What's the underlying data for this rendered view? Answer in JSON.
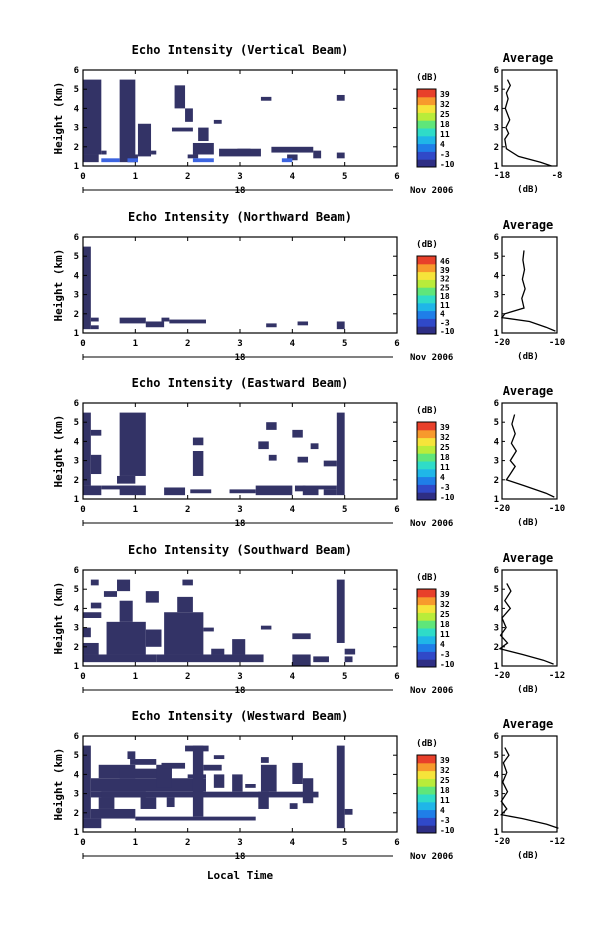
{
  "figure": {
    "x_axis_label": "Local Time",
    "date_label": "Nov 2006",
    "day_label": "18",
    "y_label": "Height (km)",
    "avg_title": "Average",
    "db_unit": "(dB)",
    "x_ticks": [
      "0",
      "1",
      "2",
      "3",
      "4",
      "5",
      "6"
    ],
    "y_ticks": [
      "1",
      "2",
      "3",
      "4",
      "5",
      "6"
    ],
    "fill_color": "#333366",
    "colormap": [
      "#2e2e84",
      "#3049c8",
      "#1f7ee8",
      "#1fb6e8",
      "#2fdcc8",
      "#5fe67a",
      "#b9ec3a",
      "#f6e43a",
      "#f79a2c",
      "#e8402a"
    ]
  },
  "chart_data": [
    {
      "type": "heatmap",
      "title": "Echo Intensity (Vertical Beam)",
      "ylabel": "Height (km)",
      "xlim": [
        0,
        6
      ],
      "ylim": [
        1,
        6
      ],
      "colorbar": {
        "unit": "(dB)",
        "ticks": [
          "39",
          "32",
          "25",
          "18",
          "11",
          "4",
          "-3",
          "-10"
        ]
      },
      "cells": [
        [
          0.0,
          0.35,
          1.6,
          5.5
        ],
        [
          0.0,
          0.3,
          1.2,
          1.6
        ],
        [
          0.35,
          0.45,
          1.6,
          1.8
        ],
        [
          0.7,
          1.0,
          1.2,
          5.5
        ],
        [
          0.85,
          1.05,
          1.2,
          1.6
        ],
        [
          1.05,
          1.3,
          1.5,
          3.2
        ],
        [
          1.3,
          1.4,
          1.6,
          1.8
        ],
        [
          1.7,
          2.1,
          2.8,
          3.0
        ],
        [
          1.75,
          1.95,
          4.0,
          5.2
        ],
        [
          1.95,
          2.1,
          3.3,
          4.0
        ],
        [
          2.1,
          2.5,
          1.6,
          2.2
        ],
        [
          2.2,
          2.4,
          2.3,
          3.0
        ],
        [
          2.0,
          2.2,
          1.4,
          1.6
        ],
        [
          2.5,
          2.65,
          3.2,
          3.4
        ],
        [
          2.6,
          3.4,
          1.5,
          1.9
        ],
        [
          2.95,
          3.2,
          1.6,
          1.9
        ],
        [
          3.4,
          3.6,
          4.4,
          4.6
        ],
        [
          3.6,
          4.4,
          1.7,
          2.0
        ],
        [
          3.9,
          4.1,
          1.3,
          1.6
        ],
        [
          4.4,
          4.55,
          1.4,
          1.8
        ],
        [
          4.85,
          5.0,
          4.4,
          4.7
        ],
        [
          4.85,
          5.0,
          1.4,
          1.7
        ]
      ],
      "average": {
        "xlim": [
          -18,
          -8
        ],
        "xticks": [
          "-18",
          "-8"
        ],
        "profile": [
          [
            -9,
            1.0
          ],
          [
            -11,
            1.2
          ],
          [
            -15,
            1.5
          ],
          [
            -17.2,
            1.9
          ],
          [
            -17.5,
            2.4
          ],
          [
            -16.8,
            2.7
          ],
          [
            -17.3,
            3.0
          ],
          [
            -16.6,
            3.4
          ],
          [
            -17.4,
            4.0
          ],
          [
            -16.9,
            4.5
          ],
          [
            -17.2,
            4.8
          ],
          [
            -16.5,
            5.2
          ],
          [
            -17.0,
            5.5
          ]
        ]
      }
    },
    {
      "type": "heatmap",
      "title": "Echo Intensity (Northward Beam)",
      "ylabel": "Height (km)",
      "xlim": [
        0,
        6
      ],
      "ylim": [
        1,
        6
      ],
      "colorbar": {
        "unit": "(dB)",
        "ticks": [
          "46",
          "39",
          "32",
          "25",
          "18",
          "11",
          "4",
          "-3",
          "-10"
        ]
      },
      "cells": [
        [
          0.0,
          0.15,
          1.2,
          5.5
        ],
        [
          0.15,
          0.3,
          1.2,
          1.4
        ],
        [
          0.15,
          0.3,
          1.6,
          1.8
        ],
        [
          0.7,
          1.2,
          1.5,
          1.8
        ],
        [
          1.2,
          1.55,
          1.3,
          1.6
        ],
        [
          1.5,
          1.65,
          1.6,
          1.8
        ],
        [
          1.65,
          2.35,
          1.5,
          1.7
        ],
        [
          3.5,
          3.7,
          1.3,
          1.5
        ],
        [
          4.1,
          4.3,
          1.4,
          1.6
        ],
        [
          4.85,
          5.0,
          1.2,
          1.6
        ]
      ],
      "average": {
        "xlim": [
          -20,
          -10
        ],
        "xticks": [
          "-20",
          "-10"
        ],
        "profile": [
          [
            -10.3,
            1.1
          ],
          [
            -12,
            1.3
          ],
          [
            -15,
            1.6
          ],
          [
            -20,
            1.8
          ],
          [
            -19.5,
            2.0
          ],
          [
            -16,
            2.3
          ],
          [
            -16.4,
            2.8
          ],
          [
            -15.8,
            3.3
          ],
          [
            -16.3,
            3.8
          ],
          [
            -15.9,
            4.3
          ],
          [
            -16.2,
            4.8
          ],
          [
            -16.0,
            5.3
          ]
        ]
      }
    },
    {
      "type": "heatmap",
      "title": "Echo Intensity (Eastward Beam)",
      "ylabel": "Height (km)",
      "xlim": [
        0,
        6
      ],
      "ylim": [
        1,
        6
      ],
      "colorbar": {
        "unit": "(dB)",
        "ticks": [
          "39",
          "32",
          "25",
          "18",
          "11",
          "4",
          "-3",
          "-10"
        ]
      },
      "cells": [
        [
          0.0,
          0.35,
          1.2,
          1.7
        ],
        [
          0.0,
          0.15,
          1.7,
          5.5
        ],
        [
          0.15,
          0.35,
          2.3,
          3.3
        ],
        [
          0.15,
          0.35,
          4.3,
          4.6
        ],
        [
          0.35,
          1.0,
          1.5,
          1.7
        ],
        [
          0.7,
          1.2,
          1.2,
          1.7
        ],
        [
          0.7,
          1.2,
          2.2,
          5.5
        ],
        [
          0.65,
          1.0,
          1.8,
          2.2
        ],
        [
          1.55,
          1.95,
          1.2,
          1.6
        ],
        [
          2.05,
          2.45,
          1.3,
          1.5
        ],
        [
          2.1,
          2.3,
          2.2,
          3.5
        ],
        [
          2.1,
          2.3,
          3.8,
          4.2
        ],
        [
          2.8,
          3.0,
          1.3,
          1.5
        ],
        [
          3.0,
          3.3,
          1.3,
          1.5
        ],
        [
          3.3,
          4.0,
          1.2,
          1.7
        ],
        [
          3.35,
          3.55,
          3.6,
          4.0
        ],
        [
          3.55,
          3.7,
          3.0,
          3.3
        ],
        [
          3.5,
          3.7,
          4.6,
          5.0
        ],
        [
          4.0,
          4.2,
          4.2,
          4.6
        ],
        [
          4.05,
          4.25,
          1.4,
          1.7
        ],
        [
          4.1,
          4.3,
          2.9,
          3.2
        ],
        [
          4.2,
          4.5,
          1.2,
          1.7
        ],
        [
          4.35,
          4.5,
          3.6,
          3.9
        ],
        [
          4.5,
          4.85,
          1.5,
          1.7
        ],
        [
          4.6,
          4.85,
          2.7,
          3.0
        ],
        [
          4.85,
          5.0,
          1.2,
          5.5
        ],
        [
          4.6,
          4.85,
          1.2,
          1.5
        ]
      ],
      "average": {
        "xlim": [
          -20,
          -10
        ],
        "xticks": [
          "-20",
          "-10"
        ],
        "profile": [
          [
            -10.5,
            1.1
          ],
          [
            -12,
            1.3
          ],
          [
            -16,
            1.7
          ],
          [
            -19.2,
            2.0
          ],
          [
            -18.5,
            2.3
          ],
          [
            -17.6,
            2.7
          ],
          [
            -18.5,
            3.0
          ],
          [
            -17.4,
            3.5
          ],
          [
            -18.3,
            3.9
          ],
          [
            -17.6,
            4.4
          ],
          [
            -18.2,
            4.9
          ],
          [
            -17.7,
            5.4
          ]
        ]
      }
    },
    {
      "type": "heatmap",
      "title": "Echo Intensity (Southward Beam)",
      "ylabel": "Height (km)",
      "xlim": [
        0,
        6
      ],
      "ylim": [
        1,
        6
      ],
      "colorbar": {
        "unit": "(dB)",
        "ticks": [
          "39",
          "32",
          "25",
          "18",
          "11",
          "4",
          "-3",
          "-10"
        ]
      },
      "cells": [
        [
          0.0,
          1.4,
          1.2,
          1.6
        ],
        [
          1.4,
          3.45,
          1.2,
          1.6
        ],
        [
          0.0,
          0.3,
          1.6,
          2.2
        ],
        [
          0.0,
          0.15,
          2.5,
          3.0
        ],
        [
          0.0,
          0.35,
          3.5,
          3.8
        ],
        [
          0.15,
          0.35,
          4.0,
          4.3
        ],
        [
          0.15,
          0.3,
          5.2,
          5.5
        ],
        [
          0.4,
          0.65,
          4.6,
          4.9
        ],
        [
          0.45,
          1.2,
          1.6,
          3.3
        ],
        [
          0.7,
          0.95,
          3.3,
          4.4
        ],
        [
          0.65,
          0.9,
          4.9,
          5.5
        ],
        [
          1.2,
          1.5,
          2.0,
          2.9
        ],
        [
          1.2,
          1.45,
          4.3,
          4.9
        ],
        [
          1.55,
          2.3,
          1.6,
          3.8
        ],
        [
          1.8,
          2.1,
          3.8,
          4.6
        ],
        [
          1.9,
          2.1,
          5.2,
          5.5
        ],
        [
          2.3,
          2.5,
          2.8,
          3.0
        ],
        [
          2.45,
          2.7,
          1.6,
          1.9
        ],
        [
          2.85,
          3.1,
          1.6,
          2.4
        ],
        [
          3.4,
          3.6,
          2.9,
          3.1
        ],
        [
          4.0,
          4.35,
          2.4,
          2.7
        ],
        [
          4.0,
          4.35,
          1.0,
          1.6
        ],
        [
          4.4,
          4.7,
          1.2,
          1.5
        ],
        [
          4.85,
          5.0,
          2.2,
          5.5
        ],
        [
          5.0,
          5.2,
          1.6,
          1.9
        ],
        [
          5.0,
          5.15,
          1.2,
          1.5
        ]
      ],
      "average": {
        "xlim": [
          -20,
          -12
        ],
        "xticks": [
          "-20",
          "-12"
        ],
        "profile": [
          [
            -12.5,
            1.1
          ],
          [
            -14,
            1.3
          ],
          [
            -17,
            1.6
          ],
          [
            -20.3,
            1.9
          ],
          [
            -19.2,
            2.2
          ],
          [
            -20.2,
            2.6
          ],
          [
            -19.4,
            3.0
          ],
          [
            -20.0,
            3.5
          ],
          [
            -18.8,
            4.0
          ],
          [
            -19.6,
            4.4
          ],
          [
            -18.7,
            4.9
          ],
          [
            -19.3,
            5.3
          ]
        ]
      }
    },
    {
      "type": "heatmap",
      "title": "Echo Intensity (Westward Beam)",
      "ylabel": "Height (km)",
      "xlim": [
        0,
        6
      ],
      "ylim": [
        1,
        6
      ],
      "colorbar": {
        "unit": "(dB)",
        "ticks": [
          "39",
          "32",
          "25",
          "18",
          "11",
          "4",
          "-3",
          "-10"
        ]
      },
      "cells": [
        [
          0.0,
          0.35,
          1.2,
          1.7
        ],
        [
          0.0,
          0.15,
          1.7,
          5.5
        ],
        [
          0.15,
          1.0,
          1.7,
          2.2
        ],
        [
          0.15,
          2.35,
          3.1,
          3.8
        ],
        [
          0.15,
          1.2,
          2.8,
          3.1
        ],
        [
          0.3,
          0.6,
          2.2,
          2.8
        ],
        [
          0.3,
          1.0,
          3.8,
          4.5
        ],
        [
          0.35,
          4.5,
          2.8,
          3.1
        ],
        [
          0.7,
          1.6,
          3.8,
          4.3
        ],
        [
          0.9,
          1.4,
          4.5,
          4.8
        ],
        [
          0.85,
          1.0,
          4.8,
          5.2
        ],
        [
          1.0,
          3.0,
          1.6,
          1.8
        ],
        [
          1.1,
          1.4,
          2.2,
          2.8
        ],
        [
          1.4,
          1.7,
          3.3,
          4.5
        ],
        [
          1.5,
          1.95,
          4.3,
          4.6
        ],
        [
          1.6,
          1.75,
          2.3,
          2.8
        ],
        [
          1.95,
          2.4,
          5.2,
          5.5
        ],
        [
          2.0,
          2.35,
          3.8,
          4.0
        ],
        [
          2.1,
          2.3,
          1.8,
          5.5
        ],
        [
          2.3,
          2.65,
          4.2,
          4.5
        ],
        [
          2.5,
          2.7,
          3.3,
          4.0
        ],
        [
          2.5,
          2.7,
          4.8,
          5.0
        ],
        [
          2.85,
          3.05,
          3.1,
          4.0
        ],
        [
          3.0,
          3.3,
          1.6,
          1.8
        ],
        [
          3.1,
          3.3,
          3.3,
          3.5
        ],
        [
          3.35,
          3.55,
          2.2,
          3.1
        ],
        [
          3.4,
          3.7,
          3.1,
          4.5
        ],
        [
          3.4,
          3.55,
          4.6,
          4.9
        ],
        [
          3.95,
          4.1,
          2.2,
          2.5
        ],
        [
          4.0,
          4.2,
          3.5,
          4.6
        ],
        [
          4.2,
          4.4,
          2.5,
          3.8
        ],
        [
          4.85,
          5.0,
          1.2,
          5.5
        ],
        [
          5.0,
          5.15,
          1.9,
          2.2
        ]
      ],
      "average": {
        "xlim": [
          -20,
          -12
        ],
        "xticks": [
          "-20",
          "-12"
        ],
        "profile": [
          [
            -11.8,
            1.2
          ],
          [
            -13.5,
            1.4
          ],
          [
            -17,
            1.7
          ],
          [
            -20.1,
            1.9
          ],
          [
            -19.3,
            2.2
          ],
          [
            -20.1,
            2.6
          ],
          [
            -19.2,
            3.1
          ],
          [
            -19.9,
            3.6
          ],
          [
            -19.3,
            4.1
          ],
          [
            -19.8,
            4.6
          ],
          [
            -19.0,
            5.0
          ],
          [
            -19.6,
            5.4
          ]
        ]
      }
    }
  ]
}
